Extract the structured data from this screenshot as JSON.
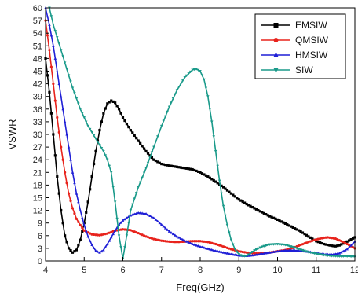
{
  "chart_data": {
    "type": "line",
    "title": "",
    "xlabel": "Freq(GHz)",
    "ylabel": "VSWR",
    "xlim": [
      4,
      12
    ],
    "ylim": [
      0,
      60
    ],
    "xticks": [
      4,
      5,
      6,
      7,
      8,
      9,
      10,
      11,
      12
    ],
    "yticks": [
      0,
      3,
      6,
      9,
      12,
      15,
      18,
      21,
      24,
      27,
      30,
      33,
      36,
      39,
      42,
      45,
      48,
      51,
      54,
      57,
      60
    ],
    "grid": false,
    "legend_position": "top-right",
    "series": [
      {
        "name": "EMSIW",
        "color": "#000000",
        "marker": "square",
        "points": [
          [
            4.0,
            48
          ],
          [
            4.1,
            40
          ],
          [
            4.2,
            30
          ],
          [
            4.3,
            20
          ],
          [
            4.4,
            12
          ],
          [
            4.5,
            6
          ],
          [
            4.6,
            3
          ],
          [
            4.7,
            2
          ],
          [
            4.8,
            2.6
          ],
          [
            4.9,
            5
          ],
          [
            5.0,
            9
          ],
          [
            5.1,
            14
          ],
          [
            5.2,
            20
          ],
          [
            5.3,
            26
          ],
          [
            5.4,
            31
          ],
          [
            5.5,
            35
          ],
          [
            5.6,
            37.3
          ],
          [
            5.7,
            38
          ],
          [
            5.8,
            37.5
          ],
          [
            5.9,
            36
          ],
          [
            6.0,
            34
          ],
          [
            6.2,
            31
          ],
          [
            6.4,
            28.5
          ],
          [
            6.6,
            26
          ],
          [
            6.8,
            24
          ],
          [
            7.0,
            23
          ],
          [
            7.2,
            22.6
          ],
          [
            7.4,
            22.3
          ],
          [
            7.6,
            22
          ],
          [
            7.8,
            21.7
          ],
          [
            8.0,
            21
          ],
          [
            8.2,
            20
          ],
          [
            8.4,
            18.8
          ],
          [
            8.6,
            17.5
          ],
          [
            8.8,
            16
          ],
          [
            9.0,
            14.6
          ],
          [
            9.2,
            13.5
          ],
          [
            9.5,
            12
          ],
          [
            9.8,
            10.6
          ],
          [
            10.0,
            9.8
          ],
          [
            10.3,
            8.4
          ],
          [
            10.6,
            7
          ],
          [
            10.8,
            5.8
          ],
          [
            11.0,
            4.7
          ],
          [
            11.2,
            4
          ],
          [
            11.4,
            3.6
          ],
          [
            11.5,
            3.5
          ],
          [
            11.6,
            3.7
          ],
          [
            11.8,
            4.6
          ],
          [
            12.0,
            5.6
          ]
        ]
      },
      {
        "name": "QMSIW",
        "color": "#e8231c",
        "marker": "circle",
        "points": [
          [
            4.0,
            57
          ],
          [
            4.1,
            50
          ],
          [
            4.2,
            42
          ],
          [
            4.3,
            34
          ],
          [
            4.4,
            27
          ],
          [
            4.5,
            21
          ],
          [
            4.6,
            16
          ],
          [
            4.7,
            12.5
          ],
          [
            4.8,
            10
          ],
          [
            4.9,
            8.5
          ],
          [
            5.0,
            7.2
          ],
          [
            5.2,
            6.3
          ],
          [
            5.4,
            6.1
          ],
          [
            5.6,
            6.5
          ],
          [
            5.8,
            7.2
          ],
          [
            6.0,
            7.5
          ],
          [
            6.2,
            7.3
          ],
          [
            6.4,
            6.6
          ],
          [
            6.6,
            5.8
          ],
          [
            6.8,
            5.2
          ],
          [
            7.0,
            4.8
          ],
          [
            7.2,
            4.6
          ],
          [
            7.4,
            4.5
          ],
          [
            7.6,
            4.6
          ],
          [
            7.8,
            4.7
          ],
          [
            8.0,
            4.7
          ],
          [
            8.2,
            4.5
          ],
          [
            8.4,
            4
          ],
          [
            8.6,
            3.4
          ],
          [
            8.8,
            2.8
          ],
          [
            9.0,
            2.3
          ],
          [
            9.2,
            2
          ],
          [
            9.4,
            1.8
          ],
          [
            9.6,
            1.8
          ],
          [
            9.8,
            2
          ],
          [
            10.0,
            2.3
          ],
          [
            10.2,
            2.6
          ],
          [
            10.4,
            3.1
          ],
          [
            10.6,
            3.8
          ],
          [
            10.8,
            4.5
          ],
          [
            11.0,
            5.1
          ],
          [
            11.2,
            5.5
          ],
          [
            11.3,
            5.6
          ],
          [
            11.5,
            5.3
          ],
          [
            11.7,
            4.5
          ],
          [
            11.9,
            3.5
          ],
          [
            12.0,
            3
          ]
        ]
      },
      {
        "name": "HMSIW",
        "color": "#1f1fd6",
        "marker": "triangle",
        "points": [
          [
            4.0,
            60
          ],
          [
            4.1,
            56
          ],
          [
            4.2,
            51
          ],
          [
            4.3,
            45
          ],
          [
            4.4,
            39
          ],
          [
            4.5,
            33
          ],
          [
            4.6,
            27
          ],
          [
            4.7,
            21
          ],
          [
            4.8,
            16
          ],
          [
            4.9,
            12
          ],
          [
            5.0,
            8.5
          ],
          [
            5.1,
            5.8
          ],
          [
            5.2,
            3.8
          ],
          [
            5.3,
            2.4
          ],
          [
            5.4,
            2
          ],
          [
            5.5,
            2.6
          ],
          [
            5.6,
            4
          ],
          [
            5.7,
            5.6
          ],
          [
            5.8,
            7.2
          ],
          [
            5.9,
            8.6
          ],
          [
            6.0,
            9.6
          ],
          [
            6.2,
            10.8
          ],
          [
            6.4,
            11.4
          ],
          [
            6.6,
            11.2
          ],
          [
            6.8,
            10.2
          ],
          [
            7.0,
            8.6
          ],
          [
            7.2,
            7
          ],
          [
            7.4,
            5.8
          ],
          [
            7.6,
            4.8
          ],
          [
            7.8,
            4
          ],
          [
            8.0,
            3.4
          ],
          [
            8.2,
            2.9
          ],
          [
            8.4,
            2.4
          ],
          [
            8.6,
            2
          ],
          [
            8.8,
            1.6
          ],
          [
            9.0,
            1.3
          ],
          [
            9.2,
            1.2
          ],
          [
            9.4,
            1.4
          ],
          [
            9.6,
            1.7
          ],
          [
            9.8,
            2
          ],
          [
            10.0,
            2.3
          ],
          [
            10.2,
            2.5
          ],
          [
            10.4,
            2.5
          ],
          [
            10.6,
            2.4
          ],
          [
            10.8,
            2.2
          ],
          [
            11.0,
            1.9
          ],
          [
            11.2,
            1.6
          ],
          [
            11.4,
            1.5
          ],
          [
            11.6,
            1.8
          ],
          [
            11.8,
            2.8
          ],
          [
            12.0,
            4.6
          ]
        ]
      },
      {
        "name": "SIW",
        "color": "#1a9a8a",
        "marker": "triangle-down",
        "points": [
          [
            4.1,
            60
          ],
          [
            4.2,
            56
          ],
          [
            4.3,
            53
          ],
          [
            4.4,
            50
          ],
          [
            4.5,
            47
          ],
          [
            4.6,
            44
          ],
          [
            4.7,
            41
          ],
          [
            4.8,
            38.5
          ],
          [
            4.9,
            36
          ],
          [
            5.0,
            34
          ],
          [
            5.1,
            32
          ],
          [
            5.2,
            30.5
          ],
          [
            5.3,
            29
          ],
          [
            5.4,
            27.5
          ],
          [
            5.5,
            26
          ],
          [
            5.6,
            24
          ],
          [
            5.7,
            21
          ],
          [
            5.8,
            14
          ],
          [
            5.9,
            6
          ],
          [
            6.0,
            0.5
          ],
          [
            6.1,
            6
          ],
          [
            6.2,
            12
          ],
          [
            6.4,
            17.5
          ],
          [
            6.6,
            22
          ],
          [
            6.8,
            27
          ],
          [
            7.0,
            32
          ],
          [
            7.2,
            36.5
          ],
          [
            7.4,
            40.5
          ],
          [
            7.6,
            43.5
          ],
          [
            7.8,
            45.3
          ],
          [
            7.9,
            45.5
          ],
          [
            8.0,
            45
          ],
          [
            8.1,
            43
          ],
          [
            8.2,
            39
          ],
          [
            8.3,
            33
          ],
          [
            8.4,
            26
          ],
          [
            8.5,
            19
          ],
          [
            8.6,
            13
          ],
          [
            8.7,
            8.5
          ],
          [
            8.8,
            5
          ],
          [
            8.9,
            2.8
          ],
          [
            9.0,
            1.6
          ],
          [
            9.1,
            1.1
          ],
          [
            9.2,
            1.2
          ],
          [
            9.3,
            1.8
          ],
          [
            9.4,
            2.5
          ],
          [
            9.6,
            3.4
          ],
          [
            9.8,
            3.9
          ],
          [
            10.0,
            4
          ],
          [
            10.2,
            3.8
          ],
          [
            10.4,
            3.3
          ],
          [
            10.6,
            2.7
          ],
          [
            10.8,
            2.1
          ],
          [
            11.0,
            1.7
          ],
          [
            11.2,
            1.4
          ],
          [
            11.4,
            1.2
          ],
          [
            11.6,
            1.1
          ],
          [
            11.8,
            1.1
          ],
          [
            12.0,
            1
          ]
        ]
      }
    ]
  }
}
